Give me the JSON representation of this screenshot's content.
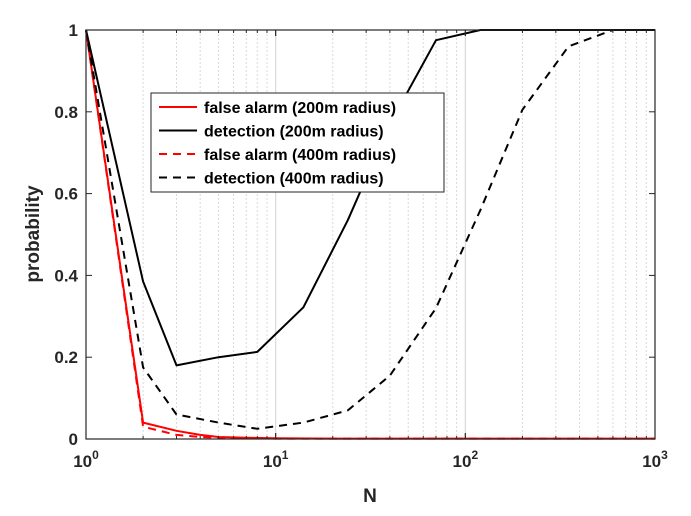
{
  "chart_data": {
    "type": "line",
    "xscale": "log",
    "xlim": [
      1,
      1000
    ],
    "ylim": [
      0,
      1
    ],
    "xlabel": "N",
    "ylabel": "probability",
    "grid": "x-only (major and minor)",
    "legend_position": "upper-left-inside",
    "x_ticks": [
      {
        "base": "10",
        "exp": "0",
        "value": 1
      },
      {
        "base": "10",
        "exp": "1",
        "value": 10
      },
      {
        "base": "10",
        "exp": "2",
        "value": 100
      },
      {
        "base": "10",
        "exp": "3",
        "value": 1000
      }
    ],
    "y_ticks": [
      {
        "label": "0",
        "value": 0
      },
      {
        "label": "0.2",
        "value": 0.2
      },
      {
        "label": "0.4",
        "value": 0.4
      },
      {
        "label": "0.6",
        "value": 0.6
      },
      {
        "label": "0.8",
        "value": 0.8
      },
      {
        "label": "1",
        "value": 1
      }
    ],
    "series": [
      {
        "name": "false alarm (200m radius)",
        "color": "#ff0000",
        "dash": "solid",
        "points": [
          [
            1,
            1
          ],
          [
            2,
            0.04
          ],
          [
            3,
            0.02
          ],
          [
            4,
            0.01
          ],
          [
            5,
            0.005
          ],
          [
            7,
            0.003
          ],
          [
            10,
            0.002
          ],
          [
            20,
            0.001
          ],
          [
            50,
            0.001
          ],
          [
            100,
            0.001
          ],
          [
            1000,
            0.001
          ]
        ]
      },
      {
        "name": "detection (200m radius)",
        "color": "#000000",
        "dash": "solid",
        "points": [
          [
            1,
            1
          ],
          [
            2,
            0.385
          ],
          [
            3,
            0.18
          ],
          [
            5,
            0.2
          ],
          [
            8,
            0.213
          ],
          [
            14,
            0.322
          ],
          [
            24,
            0.535
          ],
          [
            40,
            0.77
          ],
          [
            70,
            0.975
          ],
          [
            120,
            1.0
          ],
          [
            1000,
            1.0
          ]
        ]
      },
      {
        "name": "false alarm (400m radius)",
        "color": "#ff0000",
        "dash": "dashed",
        "points": [
          [
            1,
            1
          ],
          [
            2,
            0.03
          ],
          [
            3,
            0.01
          ],
          [
            4,
            0.005
          ],
          [
            6,
            0.002
          ],
          [
            10,
            0.001
          ],
          [
            100,
            0.001
          ],
          [
            1000,
            0.001
          ]
        ]
      },
      {
        "name": "detection (400m radius)",
        "color": "#000000",
        "dash": "dashed",
        "points": [
          [
            1,
            1
          ],
          [
            2,
            0.175
          ],
          [
            3,
            0.06
          ],
          [
            5,
            0.04
          ],
          [
            8,
            0.025
          ],
          [
            14,
            0.04
          ],
          [
            24,
            0.07
          ],
          [
            40,
            0.155
          ],
          [
            70,
            0.32
          ],
          [
            120,
            0.56
          ],
          [
            200,
            0.805
          ],
          [
            350,
            0.96
          ],
          [
            600,
            1.0
          ],
          [
            1000,
            1.0
          ]
        ]
      }
    ]
  }
}
